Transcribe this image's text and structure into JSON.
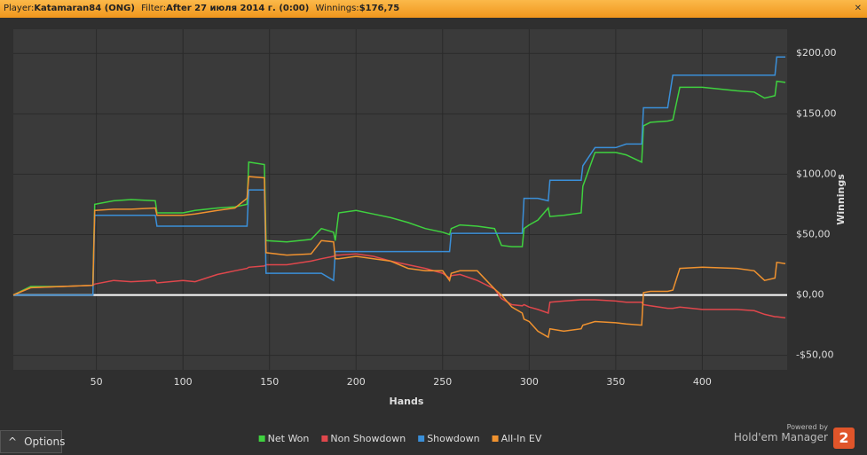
{
  "header": {
    "player_label": "Player:",
    "player": "Katamaran84 (ONG)",
    "filter_label": "Filter:",
    "filter": "After 27 июля 2014 г. (0:00)",
    "winnings_label": "Winnings:",
    "winnings": "$176,75"
  },
  "chart_data": {
    "type": "line",
    "x_label": "Hands",
    "y_label": "Winnings",
    "x": [
      2,
      12,
      30,
      48,
      49,
      60,
      70,
      84,
      85,
      100,
      107,
      120,
      130,
      137,
      138,
      147,
      148,
      160,
      174,
      180,
      187,
      188,
      190,
      200,
      210,
      220,
      230,
      240,
      250,
      254,
      255,
      260,
      270,
      280,
      284,
      290,
      296,
      297,
      300,
      305,
      311,
      312,
      320,
      330,
      331,
      338,
      350,
      356,
      365,
      366,
      370,
      380,
      383,
      387,
      400,
      420,
      430,
      436,
      442,
      443,
      448
    ],
    "series": [
      {
        "name": "Net Won",
        "color": "#3fd13f",
        "values": [
          0,
          7,
          7,
          8,
          75,
          78,
          79,
          78,
          68,
          68,
          70,
          72,
          73,
          75,
          110,
          108,
          45,
          44,
          46,
          55,
          52,
          45,
          68,
          70,
          67,
          64,
          60,
          55,
          52,
          50,
          55,
          58,
          57,
          55,
          41,
          40,
          40,
          55,
          58,
          62,
          72,
          65,
          66,
          68,
          90,
          118,
          118,
          116,
          110,
          140,
          143,
          144,
          145,
          172,
          172,
          169,
          168,
          163,
          165,
          177,
          176
        ]
      },
      {
        "name": "Non Showdown",
        "color": "#e0474c",
        "values": [
          0,
          6,
          7,
          8,
          9,
          12,
          11,
          12,
          10,
          12,
          11,
          17,
          20,
          22,
          23,
          24,
          25,
          25,
          28,
          30,
          32,
          33,
          33,
          34,
          32,
          28,
          25,
          22,
          18,
          14,
          16,
          17,
          12,
          5,
          -3,
          -8,
          -9,
          -8,
          -10,
          -12,
          -15,
          -6,
          -5,
          -4,
          -4,
          -4,
          -5,
          -6,
          -6,
          -8,
          -9,
          -11,
          -11,
          -10,
          -12,
          -12,
          -13,
          -16,
          -18,
          -18,
          -19
        ]
      },
      {
        "name": "Showdown",
        "color": "#3a8fd8",
        "values": [
          0,
          0,
          0,
          0,
          66,
          66,
          66,
          66,
          57,
          57,
          57,
          57,
          57,
          57,
          87,
          87,
          18,
          18,
          18,
          18,
          12,
          36,
          36,
          36,
          36,
          36,
          36,
          36,
          36,
          36,
          51,
          51,
          51,
          51,
          51,
          51,
          51,
          80,
          80,
          80,
          78,
          95,
          95,
          95,
          107,
          122,
          122,
          125,
          125,
          155,
          155,
          155,
          182,
          182,
          182,
          182,
          182,
          182,
          182,
          197,
          197
        ]
      },
      {
        "name": "All-In EV",
        "color": "#f0922f",
        "values": [
          0,
          6,
          7,
          8,
          70,
          71,
          71,
          72,
          66,
          66,
          67,
          70,
          72,
          80,
          98,
          97,
          35,
          33,
          34,
          45,
          44,
          30,
          30,
          32,
          30,
          28,
          22,
          20,
          20,
          12,
          18,
          20,
          20,
          5,
          0,
          -10,
          -15,
          -20,
          -22,
          -30,
          -35,
          -28,
          -30,
          -28,
          -25,
          -22,
          -23,
          -24,
          -25,
          2,
          3,
          3,
          4,
          22,
          23,
          22,
          20,
          12,
          14,
          27,
          26
        ]
      }
    ],
    "xlim": [
      2,
      449
    ],
    "ylim": [
      -62,
      220
    ],
    "xticks": [
      50,
      100,
      150,
      200,
      250,
      300,
      350,
      400
    ],
    "yticks": [
      {
        "value": -50,
        "label": "-$50,00"
      },
      {
        "value": 0,
        "label": "$0,00"
      },
      {
        "value": 50,
        "label": "$50,00"
      },
      {
        "value": 100,
        "label": "$100,00"
      },
      {
        "value": 150,
        "label": "$150,00"
      },
      {
        "value": 200,
        "label": "$200,00"
      }
    ],
    "grid": true,
    "legend": "bottom"
  },
  "footer": {
    "options": "Options",
    "powered_by": "Powered by",
    "brand": "Hold'em Manager",
    "brand_version": "2"
  }
}
